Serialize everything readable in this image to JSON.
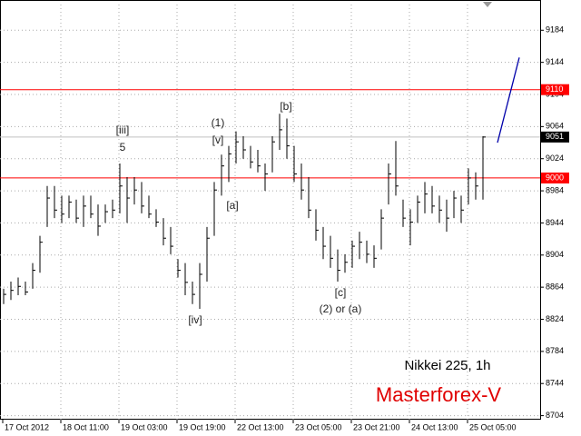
{
  "chart_data": {
    "type": "ohlc",
    "ylim": [
      8699,
      9216
    ],
    "yticks": [
      9184,
      9144,
      9104,
      9064,
      9024,
      8984,
      8944,
      8904,
      8864,
      8824,
      8784,
      8744,
      8704
    ],
    "x_labels": [
      "17 Oct 2012",
      "18 Oct 11:00",
      "19 Oct 03:00",
      "19 Oct 19:00",
      "22 Oct 13:00",
      "23 Oct 05:00",
      "23 Oct 21:00",
      "24 Oct 13:00",
      "25 Oct 05:00"
    ],
    "grid": true,
    "color": "#000000",
    "high": [
      8862,
      8871,
      8876,
      8871,
      8894,
      8928,
      8990,
      8990,
      8978,
      8978,
      8973,
      8978,
      8978,
      8967,
      8967,
      8973,
      9018,
      9001,
      9001,
      8995,
      8978,
      8961,
      8950,
      8939,
      8899,
      8894,
      8871,
      8894,
      8939,
      8995,
      9029,
      9040,
      9058,
      9052,
      9040,
      9035,
      9018,
      9052,
      9080,
      9074,
      9040,
      9018,
      9001,
      8961,
      8939,
      8928,
      8911,
      8905,
      8922,
      8933,
      8922,
      8916,
      8961,
      9018,
      9046,
      8973,
      8961,
      8978,
      8995,
      8990,
      8978,
      8973,
      8984,
      8978,
      9012,
      9007,
      9052
    ],
    "low": [
      8843,
      8848,
      8854,
      8854,
      8862,
      8882,
      8939,
      8950,
      8944,
      8950,
      8944,
      8939,
      8950,
      8928,
      8944,
      8950,
      8956,
      8944,
      8967,
      8956,
      8950,
      8939,
      8916,
      8905,
      8876,
      8854,
      8843,
      8837,
      8871,
      8928,
      8978,
      8995,
      9018,
      9024,
      9012,
      9007,
      8984,
      9007,
      9035,
      9024,
      8995,
      8973,
      8950,
      8922,
      8899,
      8888,
      8871,
      8882,
      8888,
      8899,
      8894,
      8888,
      8911,
      8967,
      8978,
      8939,
      8916,
      8944,
      8956,
      8956,
      8944,
      8933,
      8950,
      8944,
      8967,
      8973,
      8973
    ],
    "close": [
      8855,
      8860,
      8865,
      8858,
      8885,
      8920,
      8975,
      8960,
      8955,
      8970,
      8950,
      8965,
      8955,
      8940,
      8958,
      8960,
      8990,
      8975,
      8985,
      8965,
      8955,
      8945,
      8925,
      8915,
      8885,
      8870,
      8855,
      8880,
      8925,
      8985,
      9015,
      9030,
      9045,
      9035,
      9020,
      9015,
      9005,
      9045,
      9060,
      9040,
      9005,
      8985,
      8960,
      8935,
      8915,
      8900,
      8885,
      8895,
      8915,
      8920,
      8905,
      8900,
      8950,
      9005,
      8990,
      8950,
      8945,
      8970,
      8980,
      8965,
      8960,
      8950,
      8975,
      8960,
      9000,
      8990,
      9051
    ],
    "levels": [
      {
        "value": 9110,
        "color": "#ff0000"
      },
      {
        "value": 9000,
        "color": "#ff0000"
      },
      {
        "value": 9051,
        "color": "#c0c0c0"
      }
    ],
    "forecast": {
      "color": "#0000aa",
      "values": [
        9044,
        9150
      ]
    },
    "annotations": [
      "[iii]",
      "5",
      "(1)",
      "[v]",
      "[a]",
      "[b]",
      "[c]",
      "(2) or (a)",
      "[iv]"
    ],
    "symbol_label": "Nikkei 225, 1h",
    "watermark": "Masterforex-V"
  }
}
